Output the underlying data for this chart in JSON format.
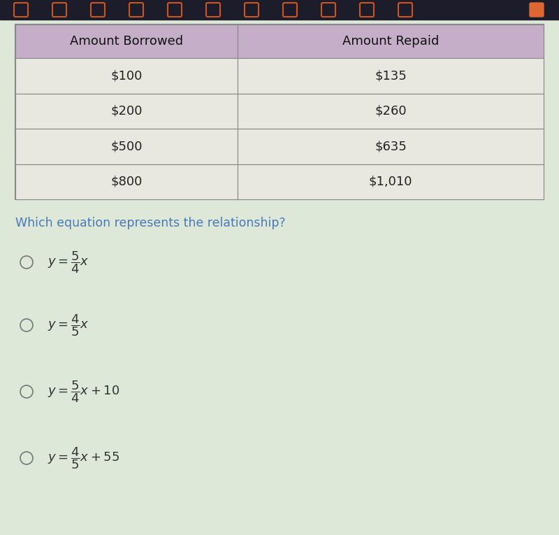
{
  "table_headers": [
    "Amount Borrowed",
    "Amount Repaid"
  ],
  "table_rows": [
    [
      "$100",
      "$135"
    ],
    [
      "$200",
      "$260"
    ],
    [
      "$500",
      "$635"
    ],
    [
      "$800",
      "$1,010"
    ]
  ],
  "header_bg_color": "#c5aec8",
  "row_bg_color": "#e8e8e0",
  "cell_text_color": "#222222",
  "header_text_color": "#111111",
  "question_text": "Which equation represents the relationship?",
  "question_color": "#4a7ab5",
  "option_texts": [
    "$y = \\dfrac{5}{4}x$",
    "$y = \\dfrac{4}{5}x$",
    "$y = \\dfrac{5}{4}x + 10$",
    "$y = \\dfrac{4}{5}x + 55$"
  ],
  "bg_top_bar": "#1a1a2e",
  "bg_main": "#dde8d8",
  "figwidth": 8.0,
  "figheight": 7.65,
  "dpi": 100
}
